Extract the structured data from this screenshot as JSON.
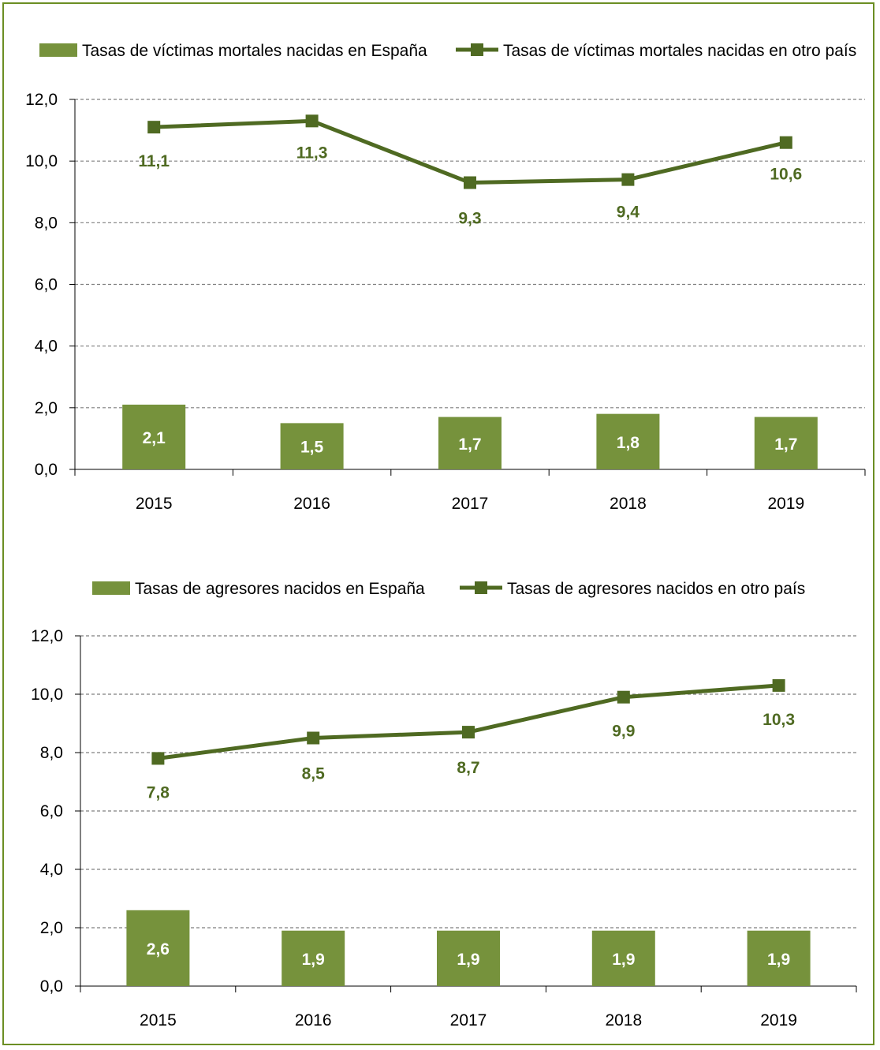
{
  "colors": {
    "bar": "#76923c",
    "line": "#4f6a22",
    "frame": "#6b8e23",
    "grid": "#7f7f7f"
  },
  "chart_data": [
    {
      "type": "bar+line",
      "categories": [
        "2015",
        "2016",
        "2017",
        "2018",
        "2019"
      ],
      "ylim": [
        0,
        12
      ],
      "yticks": [
        "0,0",
        "2,0",
        "4,0",
        "6,0",
        "8,0",
        "10,0",
        "12,0"
      ],
      "grid": true,
      "legend_position": "top",
      "series": [
        {
          "name": "Tasas de víctimas mortales nacidas en España",
          "kind": "bar",
          "values": [
            2.1,
            1.5,
            1.7,
            1.8,
            1.7
          ],
          "labels": [
            "2,1",
            "1,5",
            "1,7",
            "1,8",
            "1,7"
          ]
        },
        {
          "name": "Tasas de víctimas mortales nacidas en otro país",
          "kind": "line",
          "values": [
            11.1,
            11.3,
            9.3,
            9.4,
            10.6
          ],
          "labels": [
            "11,1",
            "11,3",
            "9,3",
            "9,4",
            "10,6"
          ]
        }
      ]
    },
    {
      "type": "bar+line",
      "categories": [
        "2015",
        "2016",
        "2017",
        "2018",
        "2019"
      ],
      "ylim": [
        0,
        12
      ],
      "yticks": [
        "0,0",
        "2,0",
        "4,0",
        "6,0",
        "8,0",
        "10,0",
        "12,0"
      ],
      "grid": true,
      "legend_position": "top",
      "series": [
        {
          "name": "Tasas de agresores nacidos en España",
          "kind": "bar",
          "values": [
            2.6,
            1.9,
            1.9,
            1.9,
            1.9
          ],
          "labels": [
            "2,6",
            "1,9",
            "1,9",
            "1,9",
            "1,9"
          ]
        },
        {
          "name": "Tasas de agresores nacidos en otro país",
          "kind": "line",
          "values": [
            7.8,
            8.5,
            8.7,
            9.9,
            10.3
          ],
          "labels": [
            "7,8",
            "8,5",
            "8,7",
            "9,9",
            "10,3"
          ]
        }
      ]
    }
  ]
}
